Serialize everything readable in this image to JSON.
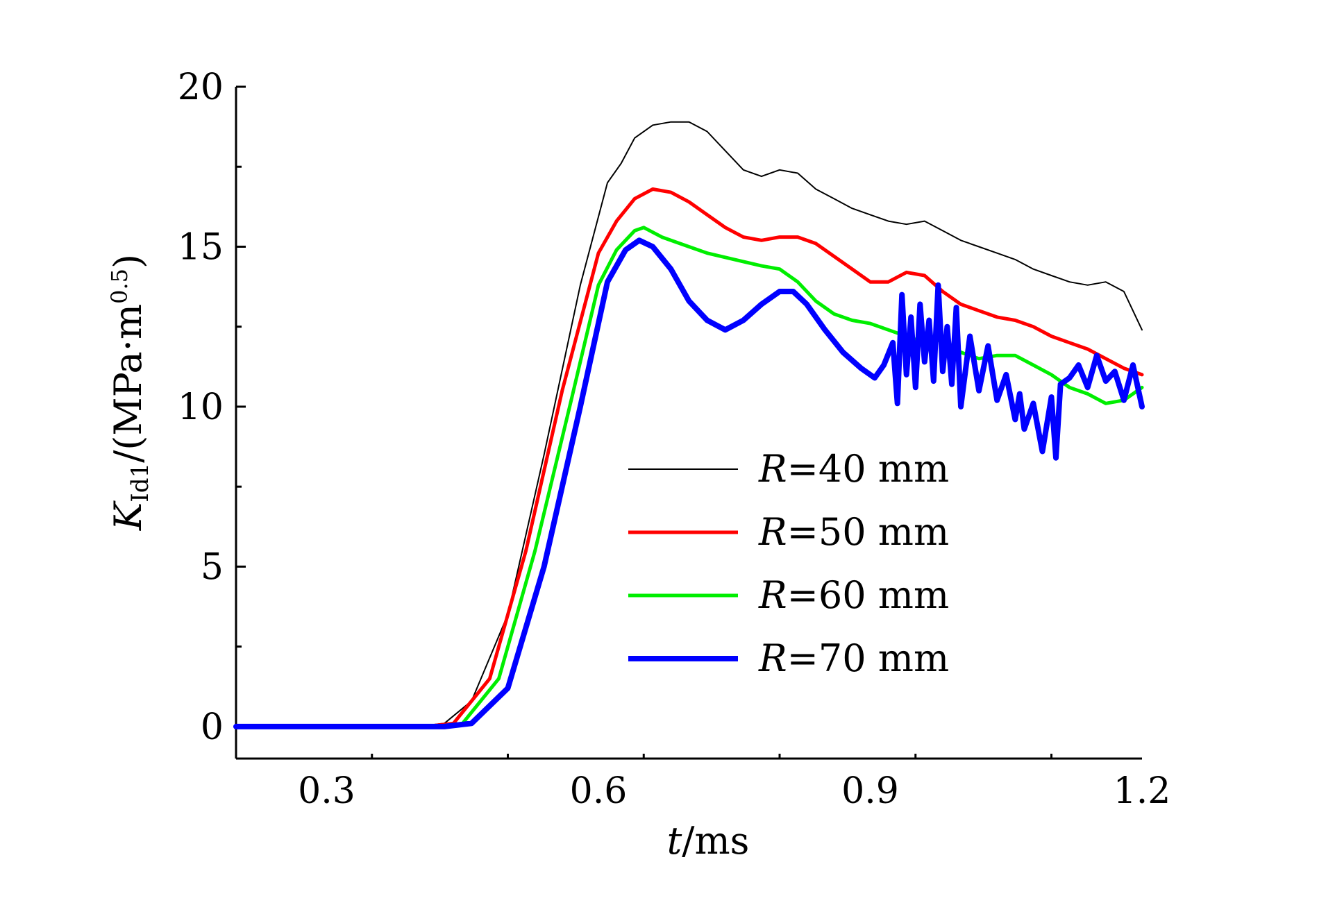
{
  "chart_data": {
    "type": "line",
    "title": "",
    "xlabel": {
      "var": "t",
      "unit": "/ms"
    },
    "ylabel": {
      "var": "K",
      "sub": "Id1",
      "unit_pre": "/(MPa·m",
      "unit_sup": "0.5",
      "unit_post": ")"
    },
    "xlim": [
      0.2,
      1.2
    ],
    "ylim": [
      -1,
      20
    ],
    "xticks": [
      0.3,
      0.6,
      0.9,
      1.2
    ],
    "xtick_labels": [
      "0.3",
      "0.6",
      "0.9",
      "1.2"
    ],
    "yticks": [
      0,
      5,
      10,
      15,
      20
    ],
    "ytick_labels": [
      "0",
      "5",
      "10",
      "15",
      "20"
    ],
    "grid": false,
    "legend_position": "lower-center-right",
    "series": [
      {
        "name": "R=40 mm",
        "var": "R",
        "suffix": "=40 mm",
        "color": "#000000",
        "width": 2,
        "x": [
          0.2,
          0.4,
          0.43,
          0.46,
          0.5,
          0.54,
          0.58,
          0.61,
          0.625,
          0.64,
          0.66,
          0.68,
          0.7,
          0.72,
          0.74,
          0.76,
          0.78,
          0.8,
          0.82,
          0.84,
          0.86,
          0.88,
          0.9,
          0.92,
          0.94,
          0.96,
          0.98,
          1.0,
          1.02,
          1.04,
          1.06,
          1.08,
          1.1,
          1.12,
          1.14,
          1.16,
          1.18,
          1.2
        ],
        "y": [
          0,
          0,
          0.1,
          0.8,
          3.5,
          8.5,
          13.8,
          17.0,
          17.6,
          18.4,
          18.8,
          18.9,
          18.9,
          18.6,
          18.0,
          17.4,
          17.2,
          17.4,
          17.3,
          16.8,
          16.5,
          16.2,
          16.0,
          15.8,
          15.7,
          15.8,
          15.5,
          15.2,
          15.0,
          14.8,
          14.6,
          14.3,
          14.1,
          13.9,
          13.8,
          13.9,
          13.6,
          12.4
        ]
      },
      {
        "name": "R=50 mm",
        "var": "R",
        "suffix": "=50 mm",
        "color": "#ff0000",
        "width": 5,
        "x": [
          0.2,
          0.41,
          0.44,
          0.48,
          0.52,
          0.56,
          0.6,
          0.62,
          0.64,
          0.66,
          0.68,
          0.7,
          0.72,
          0.74,
          0.76,
          0.78,
          0.8,
          0.82,
          0.84,
          0.86,
          0.88,
          0.9,
          0.92,
          0.94,
          0.96,
          0.98,
          1.0,
          1.02,
          1.04,
          1.06,
          1.08,
          1.1,
          1.12,
          1.14,
          1.16,
          1.18,
          1.2
        ],
        "y": [
          0,
          0,
          0.1,
          1.5,
          5.5,
          10.5,
          14.8,
          15.8,
          16.5,
          16.8,
          16.7,
          16.4,
          16.0,
          15.6,
          15.3,
          15.2,
          15.3,
          15.3,
          15.1,
          14.7,
          14.3,
          13.9,
          13.9,
          14.2,
          14.1,
          13.6,
          13.2,
          13.0,
          12.8,
          12.7,
          12.5,
          12.2,
          12.0,
          11.8,
          11.5,
          11.2,
          11.0
        ]
      },
      {
        "name": "R=60 mm",
        "var": "R",
        "suffix": "=60 mm",
        "color": "#00ee00",
        "width": 5,
        "x": [
          0.2,
          0.42,
          0.45,
          0.49,
          0.53,
          0.57,
          0.6,
          0.62,
          0.64,
          0.65,
          0.67,
          0.69,
          0.72,
          0.75,
          0.78,
          0.8,
          0.82,
          0.84,
          0.86,
          0.88,
          0.9,
          0.92,
          0.94,
          0.96,
          0.98,
          1.0,
          1.02,
          1.04,
          1.06,
          1.08,
          1.1,
          1.12,
          1.14,
          1.16,
          1.18,
          1.2
        ],
        "y": [
          0,
          0,
          0.1,
          1.5,
          5.5,
          10.2,
          13.8,
          14.9,
          15.5,
          15.6,
          15.3,
          15.1,
          14.8,
          14.6,
          14.4,
          14.3,
          13.9,
          13.3,
          12.9,
          12.7,
          12.6,
          12.4,
          12.2,
          12.0,
          12.1,
          11.7,
          11.5,
          11.6,
          11.6,
          11.3,
          11.0,
          10.6,
          10.4,
          10.1,
          10.2,
          10.6
        ]
      },
      {
        "name": "R=70 mm",
        "var": "R",
        "suffix": "=70 mm",
        "color": "#0000ff",
        "width": 8,
        "x": [
          0.2,
          0.43,
          0.46,
          0.5,
          0.54,
          0.58,
          0.61,
          0.63,
          0.645,
          0.66,
          0.68,
          0.7,
          0.72,
          0.74,
          0.76,
          0.78,
          0.8,
          0.815,
          0.83,
          0.85,
          0.87,
          0.89,
          0.905,
          0.915,
          0.925,
          0.93,
          0.935,
          0.94,
          0.945,
          0.95,
          0.955,
          0.96,
          0.965,
          0.97,
          0.975,
          0.98,
          0.985,
          0.99,
          0.995,
          1.0,
          1.01,
          1.02,
          1.03,
          1.04,
          1.05,
          1.06,
          1.065,
          1.07,
          1.08,
          1.09,
          1.1,
          1.105,
          1.11,
          1.12,
          1.13,
          1.14,
          1.15,
          1.16,
          1.17,
          1.18,
          1.19,
          1.2
        ],
        "y": [
          0,
          0,
          0.1,
          1.2,
          5.0,
          10.0,
          13.9,
          14.9,
          15.2,
          15.0,
          14.3,
          13.3,
          12.7,
          12.4,
          12.7,
          13.2,
          13.6,
          13.6,
          13.2,
          12.4,
          11.7,
          11.2,
          10.9,
          11.3,
          12.0,
          10.1,
          13.5,
          11.0,
          12.8,
          10.6,
          13.2,
          11.4,
          12.7,
          10.8,
          13.8,
          11.1,
          12.5,
          10.7,
          13.1,
          10.0,
          12.2,
          10.5,
          11.9,
          10.2,
          11.0,
          9.6,
          10.4,
          9.3,
          10.1,
          8.6,
          10.3,
          8.4,
          10.7,
          10.9,
          11.3,
          10.6,
          11.6,
          10.8,
          11.1,
          10.2,
          11.3,
          10.0
        ]
      }
    ]
  }
}
